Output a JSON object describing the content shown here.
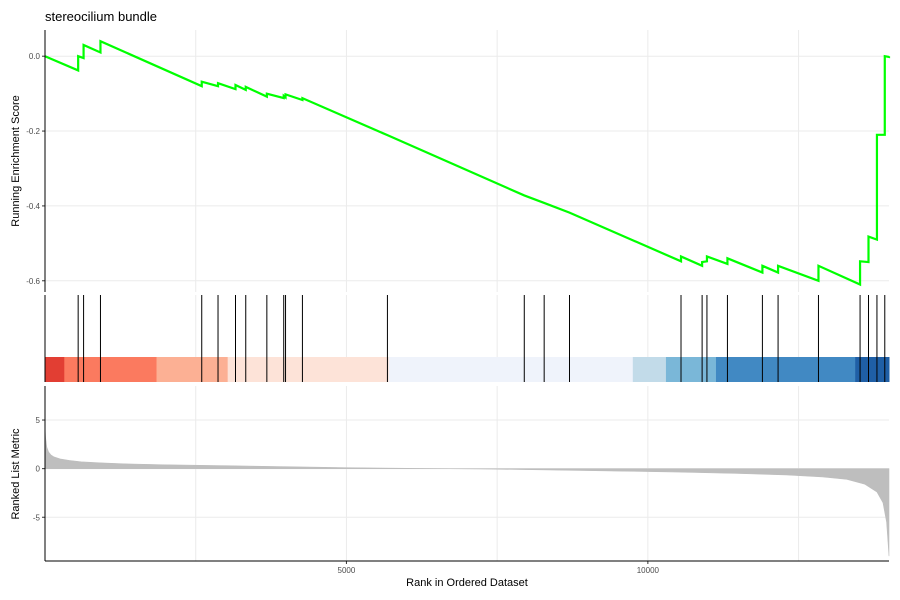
{
  "chart_data": [
    {
      "panel": "running-score",
      "type": "line",
      "title": "stereocilium bundle",
      "ylabel": "Running Enrichment Score",
      "xlim": [
        0,
        14000
      ],
      "ylim": [
        -0.63,
        0.07
      ],
      "yticks": [
        0.0,
        -0.2,
        -0.4,
        -0.6
      ],
      "ytick_labels": [
        "0.0",
        "-0.2",
        "-0.4",
        "-0.6"
      ],
      "grid": true,
      "line_color": "#00ff00",
      "series": [
        {
          "x": [
            0,
            550,
            550,
            640,
            640,
            920,
            920,
            2600,
            2600,
            2870,
            2870,
            3160,
            3160,
            3330,
            3330,
            3680,
            3680,
            3960,
            3960,
            3990,
            3990,
            4270,
            4270,
            5680,
            5680,
            7950,
            7950,
            8280,
            8280,
            8700,
            8700,
            10550,
            10550,
            10900,
            10900,
            10980,
            10980,
            11320,
            11320,
            11900,
            11900,
            12160,
            12160,
            12830,
            12830,
            13520,
            13520,
            13660,
            13660,
            13800,
            13800,
            13930,
            13930,
            14000,
            14000
          ],
          "y": [
            0.0,
            -0.038,
            0.0,
            -0.005,
            0.03,
            0.01,
            0.04,
            -0.08,
            -0.068,
            -0.08,
            -0.072,
            -0.088,
            -0.077,
            -0.09,
            -0.082,
            -0.108,
            -0.1,
            -0.112,
            -0.106,
            -0.11,
            -0.102,
            -0.117,
            -0.112,
            -0.211,
            -0.211,
            -0.372,
            -0.372,
            -0.392,
            -0.392,
            -0.418,
            -0.418,
            -0.548,
            -0.535,
            -0.56,
            -0.55,
            -0.548,
            -0.535,
            -0.555,
            -0.54,
            -0.578,
            -0.56,
            -0.578,
            -0.56,
            -0.6,
            -0.56,
            -0.61,
            -0.548,
            -0.55,
            -0.482,
            -0.49,
            -0.21,
            -0.21,
            0.0,
            -0.002,
            0.0
          ]
        }
      ]
    },
    {
      "panel": "gene-hits",
      "type": "scatter",
      "xlim": [
        0,
        14000
      ],
      "hit_ranks": [
        550,
        640,
        920,
        2600,
        2870,
        3160,
        3330,
        3680,
        3960,
        3990,
        4270,
        5680,
        7950,
        8280,
        8700,
        10550,
        10900,
        10980,
        11320,
        11900,
        12160,
        12830,
        13520,
        13660,
        13800,
        13930
      ],
      "hit_color": "#000000",
      "color_bands": [
        {
          "start": 0,
          "end": 320,
          "color": "#e23e33"
        },
        {
          "start": 320,
          "end": 1850,
          "color": "#fb7a5f"
        },
        {
          "start": 1850,
          "end": 3030,
          "color": "#fcb094"
        },
        {
          "start": 3030,
          "end": 5700,
          "color": "#fde3d8"
        },
        {
          "start": 5700,
          "end": 9750,
          "color": "#eff3fb"
        },
        {
          "start": 9750,
          "end": 10300,
          "color": "#c2dbe9"
        },
        {
          "start": 10300,
          "end": 11130,
          "color": "#7ab7d8"
        },
        {
          "start": 11130,
          "end": 13440,
          "color": "#4189c3"
        },
        {
          "start": 13440,
          "end": 14000,
          "color": "#1f5fa6"
        }
      ]
    },
    {
      "panel": "ranked-metric",
      "type": "area",
      "xlabel": "Rank in Ordered Dataset",
      "ylabel": "Ranked List Metric",
      "xlim": [
        0,
        14000
      ],
      "ylim": [
        -9.5,
        8.5
      ],
      "xticks": [
        5000,
        10000
      ],
      "xtick_labels": [
        "5000",
        "10000"
      ],
      "yticks": [
        5,
        0,
        -5
      ],
      "ytick_labels": [
        "5",
        "0",
        "-5"
      ],
      "grid": true,
      "fill_color": "#bebebe",
      "series": [
        {
          "x": [
            0,
            10,
            30,
            60,
            100,
            150,
            250,
            400,
            600,
            900,
            1300,
            2000,
            3000,
            4000,
            5000,
            6000,
            6700,
            7400,
            8500,
            9500,
            10500,
            11500,
            12300,
            12900,
            13300,
            13600,
            13800,
            13900,
            13960,
            14000
          ],
          "y": [
            4.2,
            3.2,
            2.2,
            1.7,
            1.4,
            1.2,
            1.0,
            0.85,
            0.7,
            0.6,
            0.5,
            0.4,
            0.3,
            0.2,
            0.1,
            0.03,
            0.0,
            -0.05,
            -0.15,
            -0.25,
            -0.35,
            -0.5,
            -0.65,
            -0.85,
            -1.1,
            -1.6,
            -2.4,
            -3.5,
            -5.5,
            -9.0
          ]
        }
      ]
    }
  ]
}
